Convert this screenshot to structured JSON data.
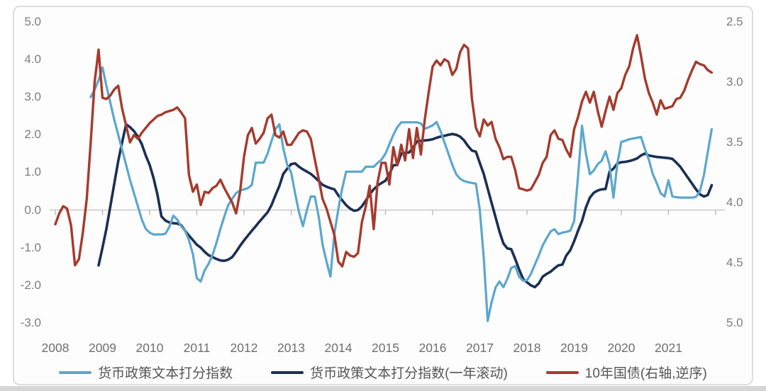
{
  "page": {
    "bottom_strip_color": "#d6d6d6"
  },
  "chart_data": {
    "type": "line",
    "title": "",
    "grid": "x-axis zero line only",
    "legend_position": "bottom",
    "x_axis": {
      "tick_labels": [
        "2008",
        "2009",
        "2010",
        "2011",
        "2012",
        "2013",
        "2014",
        "2015",
        "2016",
        "2017",
        "2018",
        "2019",
        "2020",
        "2021"
      ],
      "unit": "monthly data, Jan 2008 - Dec 2021"
    },
    "left_axis": {
      "min": -3.0,
      "max": 5.0,
      "tick_labels": [
        "5.0",
        "4.0",
        "3.0",
        "2.0",
        "1.0",
        "0.0",
        "-1.0",
        "-2.0",
        "-3.0"
      ]
    },
    "right_axis": {
      "min": 2.5,
      "max": 5.0,
      "inverted": true,
      "tick_labels": [
        "2.5",
        "3.0",
        "3.5",
        "4.0",
        "4.5",
        "5.0"
      ]
    },
    "series": [
      {
        "name": "货币政策文本打分指数",
        "axis": "left",
        "color": "#5BA7CE",
        "stroke_width": 3.2,
        "start": "2008-10",
        "monthly_values": [
          3.0,
          3.2,
          3.45,
          3.79,
          3.3,
          2.85,
          2.4,
          2.0,
          1.6,
          1.2,
          0.8,
          0.45,
          0.1,
          -0.25,
          -0.5,
          -0.6,
          -0.65,
          -0.65,
          -0.65,
          -0.63,
          -0.45,
          -0.15,
          -0.25,
          -0.43,
          -0.55,
          -0.8,
          -1.17,
          -1.81,
          -1.9,
          -1.6,
          -1.43,
          -1.19,
          -0.87,
          -0.5,
          -0.17,
          0.13,
          0.3,
          0.45,
          0.52,
          0.55,
          0.58,
          0.67,
          1.26,
          1.26,
          1.26,
          1.5,
          1.83,
          2.15,
          2.28,
          1.64,
          1.2,
          1.0,
          0.45,
          -0.06,
          -0.43,
          0.0,
          0.36,
          0.36,
          -0.17,
          -0.92,
          -1.37,
          -1.77,
          -0.62,
          0.02,
          0.58,
          1.02,
          1.02,
          1.02,
          1.02,
          1.02,
          1.15,
          1.15,
          1.15,
          1.25,
          1.34,
          1.5,
          1.75,
          2.0,
          2.2,
          2.33,
          2.33,
          2.33,
          2.33,
          2.33,
          2.3,
          2.16,
          2.2,
          2.25,
          2.34,
          2.1,
          1.8,
          1.5,
          1.2,
          0.95,
          0.83,
          0.77,
          0.74,
          0.72,
          0.7,
          0.0,
          -1.25,
          -2.95,
          -2.45,
          -2.06,
          -1.9,
          -2.05,
          -1.83,
          -1.54,
          -1.49,
          -1.77,
          -1.88,
          -1.87,
          -1.7,
          -1.45,
          -1.21,
          -0.94,
          -0.75,
          -0.57,
          -0.51,
          -0.64,
          -0.6,
          -0.58,
          -0.55,
          -0.3,
          0.9,
          2.24,
          1.5,
          0.95,
          1.05,
          1.22,
          1.31,
          1.56,
          1.2,
          0.33,
          1.24,
          1.81,
          1.84,
          1.88,
          1.9,
          1.92,
          1.94,
          1.62,
          1.34,
          0.96,
          0.72,
          0.45,
          0.36,
          0.79,
          0.36,
          0.34,
          0.33,
          0.33,
          0.33,
          0.33,
          0.35,
          0.5,
          0.92,
          1.54,
          2.15
        ]
      },
      {
        "name": "货币政策文本打分指数(一年滚动)",
        "axis": "left",
        "color": "#1B2F55",
        "stroke_width": 3.6,
        "start": "2008-12",
        "monthly_values": [
          -1.47,
          -1.0,
          -0.5,
          0.1,
          0.7,
          1.3,
          1.8,
          2.28,
          2.2,
          2.1,
          1.95,
          1.75,
          1.45,
          1.2,
          0.85,
          0.4,
          -0.17,
          -0.28,
          -0.33,
          -0.35,
          -0.36,
          -0.4,
          -0.55,
          -0.68,
          -0.8,
          -0.92,
          -1.0,
          -1.11,
          -1.2,
          -1.25,
          -1.3,
          -1.34,
          -1.35,
          -1.32,
          -1.25,
          -1.11,
          -0.95,
          -0.81,
          -0.68,
          -0.55,
          -0.43,
          -0.3,
          -0.18,
          -0.06,
          0.13,
          0.39,
          0.64,
          0.96,
          1.1,
          1.22,
          1.24,
          1.15,
          1.08,
          1.02,
          0.96,
          0.87,
          0.77,
          0.67,
          0.62,
          0.58,
          0.55,
          0.39,
          0.26,
          0.13,
          0.04,
          -0.02,
          0.0,
          0.1,
          0.25,
          0.42,
          0.55,
          0.65,
          0.72,
          0.78,
          0.95,
          1.19,
          1.2,
          1.5,
          1.52,
          1.53,
          1.65,
          1.82,
          1.84,
          1.85,
          1.86,
          1.88,
          1.92,
          1.95,
          1.97,
          2.0,
          2.02,
          2.0,
          1.95,
          1.85,
          1.7,
          1.58,
          1.55,
          1.25,
          0.96,
          0.57,
          0.19,
          -0.19,
          -0.57,
          -0.89,
          -1.02,
          -1.04,
          -1.3,
          -1.58,
          -1.83,
          -1.92,
          -2.0,
          -2.05,
          -1.95,
          -1.77,
          -1.7,
          -1.64,
          -1.55,
          -1.47,
          -1.45,
          -1.21,
          -1.07,
          -0.83,
          -0.55,
          -0.29,
          0.07,
          0.33,
          0.46,
          0.52,
          0.55,
          0.56,
          1.02,
          1.1,
          1.24,
          1.27,
          1.28,
          1.3,
          1.33,
          1.37,
          1.45,
          1.5,
          1.45,
          1.43,
          1.41,
          1.4,
          1.39,
          1.38,
          1.36,
          1.26,
          1.15,
          1.0,
          0.85,
          0.7,
          0.55,
          0.42,
          0.36,
          0.4,
          0.66
        ]
      },
      {
        "name": "10年国债(右轴,逆序)",
        "axis": "right",
        "color": "#A63A2C",
        "stroke_width": 3.4,
        "start": "2008-01",
        "monthly_values": [
          4.18,
          4.09,
          4.03,
          4.05,
          4.19,
          4.52,
          4.47,
          4.25,
          3.97,
          3.5,
          3.0,
          2.73,
          3.13,
          3.14,
          3.11,
          3.06,
          3.03,
          3.22,
          3.36,
          3.5,
          3.44,
          3.47,
          3.42,
          3.38,
          3.34,
          3.31,
          3.28,
          3.27,
          3.25,
          3.24,
          3.23,
          3.21,
          3.25,
          3.3,
          3.77,
          3.91,
          3.85,
          4.02,
          3.91,
          3.92,
          3.88,
          3.86,
          3.81,
          3.88,
          3.94,
          4.0,
          4.09,
          3.91,
          3.62,
          3.44,
          3.38,
          3.51,
          3.47,
          3.42,
          3.3,
          3.27,
          3.44,
          3.46,
          3.41,
          3.52,
          3.52,
          3.47,
          3.42,
          3.4,
          3.41,
          3.47,
          3.64,
          3.8,
          3.97,
          4.05,
          4.16,
          4.27,
          4.49,
          4.53,
          4.41,
          4.44,
          4.45,
          4.42,
          4.16,
          4.03,
          3.86,
          4.22,
          3.83,
          3.67,
          3.67,
          3.85,
          3.54,
          3.69,
          3.52,
          3.65,
          3.39,
          3.63,
          3.38,
          3.6,
          3.31,
          3.08,
          2.87,
          2.82,
          2.86,
          2.81,
          2.83,
          2.94,
          2.89,
          2.75,
          2.69,
          2.72,
          3.14,
          3.38,
          3.45,
          3.31,
          3.36,
          3.33,
          3.47,
          3.54,
          3.64,
          3.62,
          3.62,
          3.73,
          3.88,
          3.89,
          3.9,
          3.89,
          3.83,
          3.77,
          3.67,
          3.62,
          3.44,
          3.4,
          3.47,
          3.48,
          3.56,
          3.62,
          3.39,
          3.29,
          3.16,
          3.08,
          3.17,
          3.08,
          3.24,
          3.37,
          3.24,
          3.12,
          3.23,
          3.09,
          3.05,
          2.94,
          2.87,
          2.72,
          2.61,
          2.78,
          2.97,
          3.09,
          3.17,
          3.27,
          3.15,
          3.22,
          3.21,
          3.2,
          3.14,
          3.13,
          3.07,
          2.98,
          2.9,
          2.83,
          2.85,
          2.86,
          2.9,
          2.92
        ]
      }
    ]
  }
}
